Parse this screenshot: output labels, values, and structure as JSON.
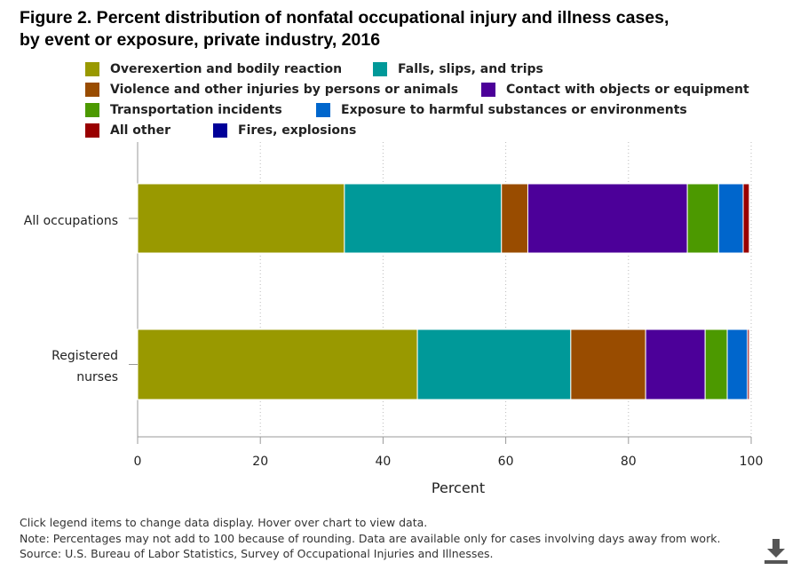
{
  "title_line1": "Figure 2. Percent distribution of nonfatal occupational injury and illness cases,",
  "title_line2": "by event or exposure, private industry, 2016",
  "chart_data": {
    "type": "bar",
    "orientation": "horizontal-stacked",
    "title": "Figure 2. Percent distribution of nonfatal occupational injury and illness cases, by event or exposure, private industry, 2016",
    "xlabel": "Percent",
    "xlim": [
      0,
      100
    ],
    "xticks": [
      "0",
      "20",
      "40",
      "60",
      "80",
      "100"
    ],
    "grid": "vertical dotted",
    "legend_position": "top",
    "categories": [
      "All occupations",
      "Registered nurses"
    ],
    "category_labels": [
      [
        "All occupations"
      ],
      [
        "Registered",
        "nurses"
      ]
    ],
    "series": [
      {
        "name": "Overexertion and bodily reaction",
        "color": "#999900",
        "values": [
          33.7,
          45.6
        ]
      },
      {
        "name": "Falls, slips, and trips",
        "color": "#009999",
        "values": [
          25.6,
          25.0
        ]
      },
      {
        "name": "Violence and other injuries by persons or animals",
        "color": "#994c00",
        "values": [
          4.3,
          12.2
        ]
      },
      {
        "name": "Contact with objects or equipment",
        "color": "#4c0099",
        "values": [
          26.0,
          9.7
        ]
      },
      {
        "name": "Transportation incidents",
        "color": "#4c9900",
        "values": [
          5.1,
          3.6
        ]
      },
      {
        "name": "Exposure to harmful substances or environments",
        "color": "#0066cc",
        "values": [
          4.0,
          3.3
        ]
      },
      {
        "name": "All other",
        "color": "#990000",
        "values": [
          1.0,
          0.3
        ]
      },
      {
        "name": "Fires, explosions",
        "color": "#000099",
        "values": [
          0.1,
          0.1
        ]
      }
    ]
  },
  "footer": {
    "line1": "Click legend items to change data display. Hover over chart to view data.",
    "line2": "Note: Percentages may not add to 100 because of rounding. Data are available only for cases involving days away from work.",
    "line3": "Source: U.S. Bureau of Labor Statistics, Survey of Occupational Injuries and Illnesses."
  },
  "download_icon": "download-icon"
}
